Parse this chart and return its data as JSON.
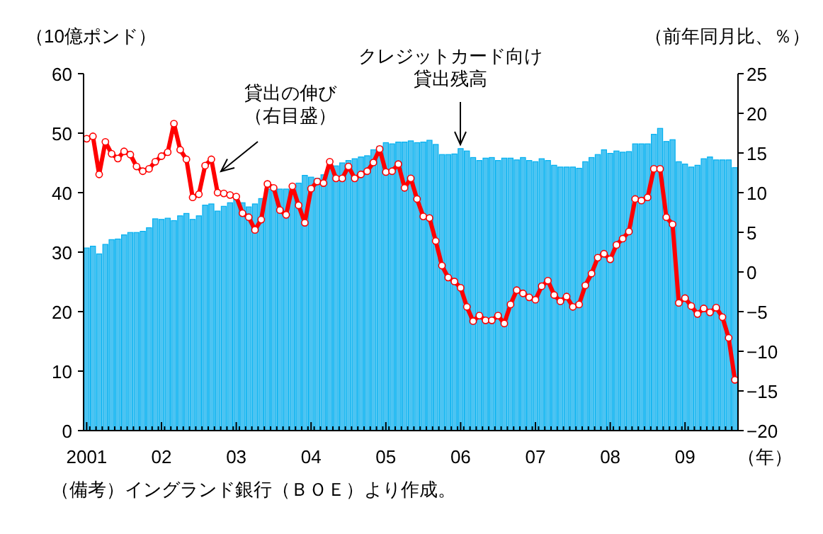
{
  "chart_data": {
    "type": "bar",
    "categories": [
      "2001",
      null,
      null,
      null,
      null,
      null,
      null,
      null,
      null,
      null,
      null,
      null,
      "02",
      null,
      null,
      null,
      null,
      null,
      null,
      null,
      null,
      null,
      null,
      null,
      "03",
      null,
      null,
      null,
      null,
      null,
      null,
      null,
      null,
      null,
      null,
      null,
      "04",
      null,
      null,
      null,
      null,
      null,
      null,
      null,
      null,
      null,
      null,
      null,
      "05",
      null,
      null,
      null,
      null,
      null,
      null,
      null,
      null,
      null,
      null,
      null,
      "06",
      null,
      null,
      null,
      null,
      null,
      null,
      null,
      null,
      null,
      null,
      null,
      "07",
      null,
      null,
      null,
      null,
      null,
      null,
      null,
      null,
      null,
      null,
      null,
      "08",
      null,
      null,
      null,
      null,
      null,
      null,
      null,
      null,
      null,
      null,
      null,
      "09",
      null,
      null,
      null,
      null,
      null,
      null,
      null,
      null
    ],
    "series": [
      {
        "color": "#4cc4f2",
        "values": [
          30.7,
          31.0,
          29.7,
          31.3,
          32.1,
          32.2,
          32.9,
          33.3,
          33.3,
          33.5,
          34.1,
          35.6,
          35.5,
          35.7,
          35.3,
          36.1,
          36.5,
          35.5,
          36.1,
          37.9,
          38.1,
          36.9,
          37.7,
          38.3,
          39.0,
          38.3,
          37.6,
          38.1,
          39.0,
          40.6,
          40.6,
          40.6,
          40.6,
          40.8,
          41.6,
          42.9,
          42.6,
          42.4,
          43.0,
          44.0,
          44.5,
          45.0,
          45.4,
          45.7,
          46.0,
          46.2,
          47.2,
          47.8,
          48.4,
          48.2,
          48.5,
          48.5,
          48.7,
          48.4,
          48.5,
          48.8,
          48.1,
          46.4,
          46.4,
          46.5,
          47.4,
          47.0,
          45.9,
          45.4,
          45.8,
          45.9,
          45.4,
          45.8,
          45.8,
          45.5,
          45.9,
          45.4,
          45.2,
          45.7,
          45.4,
          44.6,
          44.3,
          44.3,
          44.3,
          44.1,
          45.2,
          45.9,
          46.4,
          47.2,
          46.6,
          47.0,
          46.8,
          46.9,
          48.2,
          48.2,
          48.2,
          49.8,
          50.8,
          48.6,
          48.9,
          45.2,
          44.8,
          44.3,
          44.6,
          45.7,
          46.0,
          45.5,
          45.5,
          45.5,
          44.2
        ]
      },
      {
        "type": "line",
        "axis": "y2",
        "color": "#ff0000",
        "marker": "circle",
        "values": [
          16.8,
          17.1,
          12.3,
          16.4,
          14.9,
          14.3,
          15.2,
          14.8,
          13.3,
          12.7,
          13.0,
          13.9,
          14.6,
          15.1,
          18.7,
          15.4,
          14.2,
          9.4,
          9.8,
          13.4,
          14.2,
          10.0,
          9.9,
          9.7,
          9.5,
          7.4,
          6.9,
          5.3,
          6.6,
          11.1,
          10.6,
          7.8,
          7.2,
          10.8,
          8.4,
          6.2,
          10.5,
          11.4,
          11.2,
          13.9,
          11.8,
          11.8,
          13.3,
          11.8,
          12.3,
          12.7,
          13.8,
          15.5,
          12.6,
          12.7,
          13.6,
          10.6,
          11.8,
          9.2,
          7.0,
          6.8,
          3.9,
          0.8,
          -0.7,
          -1.2,
          -2.0,
          -4.4,
          -6.2,
          -5.5,
          -6.1,
          -6.1,
          -5.5,
          -6.5,
          -4.1,
          -2.3,
          -2.7,
          -3.2,
          -3.5,
          -1.8,
          -1.1,
          -2.9,
          -3.7,
          -3.1,
          -4.4,
          -4.1,
          -1.7,
          -0.2,
          1.8,
          2.3,
          1.6,
          3.4,
          4.2,
          5.1,
          9.2,
          9.0,
          9.4,
          13.0,
          13.0,
          6.9,
          6.0,
          -3.9,
          -3.3,
          -4.3,
          -5.3,
          -4.6,
          -5.1,
          -4.5,
          -5.7,
          -8.3,
          -13.6
        ]
      }
    ],
    "ylim": [
      0,
      60
    ],
    "yticks": [
      0,
      10,
      20,
      30,
      40,
      50,
      60
    ],
    "y2lim": [
      -20,
      25
    ],
    "y2ticks": [
      -20,
      -15,
      -10,
      -5,
      0,
      5,
      10,
      15,
      20,
      25
    ],
    "ylabel": "（10億ポンド）",
    "y2label": "（前年同月比、％）",
    "xlabel": "（年）",
    "annotations": [
      "貸出の伸び（右目盛）",
      "クレジットカード向け貸出残高",
      "（備考）イングランド銀行（ＢＯＥ）より作成。"
    ]
  }
}
